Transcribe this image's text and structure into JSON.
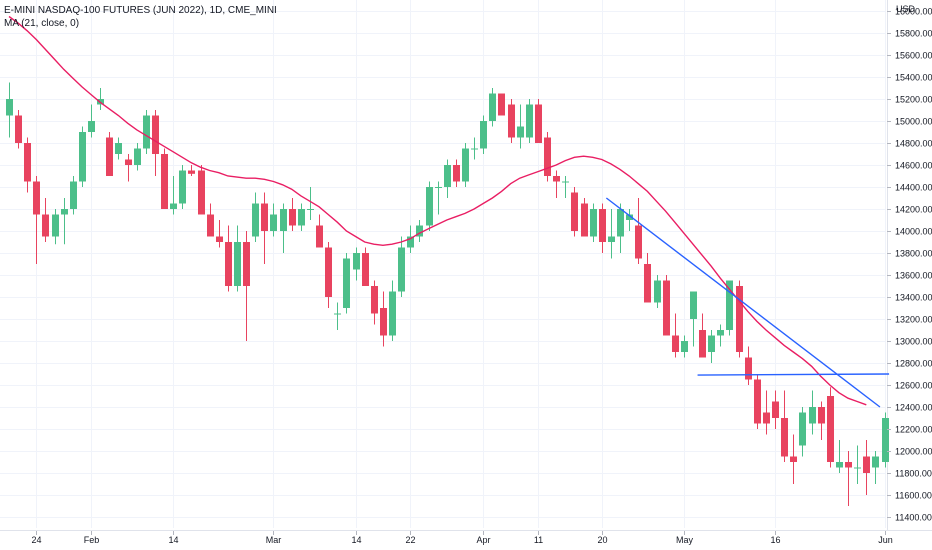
{
  "header": {
    "symbol_line": "E-MINI NASDAQ-100 FUTURES (JUN 2022), 1D, CME_MINI",
    "indicator_line": "MA (21, close, 0)",
    "currency": "USD"
  },
  "colors": {
    "up": "#26a69a",
    "up_body": "#4cbf8a",
    "down": "#ef5350",
    "down_body": "#e8435f",
    "ma": "#e91e63",
    "trendline": "#2962ff",
    "grid": "#f0f3fa",
    "axis_text": "#131722"
  },
  "chart_data": {
    "type": "candlestick",
    "title": "E-MINI NASDAQ-100 FUTURES (JUN 2022), 1D, CME_MINI",
    "ylabel": "USD",
    "ylim": [
      11300,
      16100
    ],
    "y_ticks": [
      "16000.00",
      "15800.00",
      "15600.00",
      "15400.00",
      "15200.00",
      "15000.00",
      "14800.00",
      "14600.00",
      "14400.00",
      "14200.00",
      "14000.00",
      "13800.00",
      "13600.00",
      "13400.00",
      "13200.00",
      "13000.00",
      "12800.00",
      "12600.00",
      "12400.00",
      "12200.00",
      "12000.00",
      "11800.00",
      "11600.00",
      "11400.00"
    ],
    "x_ticks": [
      {
        "label": "24",
        "index": 3
      },
      {
        "label": "Feb",
        "index": 9
      },
      {
        "label": "14",
        "index": 18
      },
      {
        "label": "Mar",
        "index": 29
      },
      {
        "label": "14",
        "index": 38
      },
      {
        "label": "22",
        "index": 44
      },
      {
        "label": "Apr",
        "index": 52
      },
      {
        "label": "11",
        "index": 58
      },
      {
        "label": "20",
        "index": 65
      },
      {
        "label": "May",
        "index": 74
      },
      {
        "label": "16",
        "index": 84
      },
      {
        "label": "Jun",
        "index": 96
      }
    ],
    "candles": [
      {
        "o": 15050,
        "h": 15350,
        "l": 14850,
        "c": 15200
      },
      {
        "o": 15050,
        "h": 15100,
        "l": 14750,
        "c": 14800
      },
      {
        "o": 14800,
        "h": 14850,
        "l": 14350,
        "c": 14450
      },
      {
        "o": 14450,
        "h": 14500,
        "l": 13700,
        "c": 14150
      },
      {
        "o": 14150,
        "h": 14300,
        "l": 13900,
        "c": 13950
      },
      {
        "o": 13950,
        "h": 14200,
        "l": 13880,
        "c": 14150
      },
      {
        "o": 14150,
        "h": 14300,
        "l": 13880,
        "c": 14200
      },
      {
        "o": 14200,
        "h": 14500,
        "l": 14150,
        "c": 14450
      },
      {
        "o": 14450,
        "h": 14950,
        "l": 14400,
        "c": 14900
      },
      {
        "o": 14900,
        "h": 15150,
        "l": 14850,
        "c": 15000
      },
      {
        "o": 15150,
        "h": 15300,
        "l": 15100,
        "c": 15200
      },
      {
        "o": 14850,
        "h": 14900,
        "l": 14500,
        "c": 14500
      },
      {
        "o": 14700,
        "h": 14850,
        "l": 14650,
        "c": 14800
      },
      {
        "o": 14650,
        "h": 14700,
        "l": 14450,
        "c": 14600
      },
      {
        "o": 14600,
        "h": 14800,
        "l": 14550,
        "c": 14750
      },
      {
        "o": 14750,
        "h": 15100,
        "l": 14700,
        "c": 15050
      },
      {
        "o": 15050,
        "h": 15100,
        "l": 14500,
        "c": 14700
      },
      {
        "o": 14700,
        "h": 14750,
        "l": 14200,
        "c": 14200
      },
      {
        "o": 14200,
        "h": 14500,
        "l": 14150,
        "c": 14250
      },
      {
        "o": 14250,
        "h": 14600,
        "l": 14200,
        "c": 14550
      },
      {
        "o": 14550,
        "h": 14600,
        "l": 14500,
        "c": 14520
      },
      {
        "o": 14550,
        "h": 14600,
        "l": 14150,
        "c": 14150
      },
      {
        "o": 14150,
        "h": 14250,
        "l": 13950,
        "c": 13950
      },
      {
        "o": 13950,
        "h": 14100,
        "l": 13850,
        "c": 13900
      },
      {
        "o": 13900,
        "h": 14050,
        "l": 13450,
        "c": 13500
      },
      {
        "o": 13500,
        "h": 14050,
        "l": 13450,
        "c": 13900
      },
      {
        "o": 13900,
        "h": 14000,
        "l": 13000,
        "c": 13500
      },
      {
        "o": 13950,
        "h": 14350,
        "l": 13900,
        "c": 14250
      },
      {
        "o": 14250,
        "h": 14350,
        "l": 13700,
        "c": 14000
      },
      {
        "o": 14000,
        "h": 14250,
        "l": 13950,
        "c": 14150
      },
      {
        "o": 14000,
        "h": 14250,
        "l": 13800,
        "c": 14200
      },
      {
        "o": 14200,
        "h": 14300,
        "l": 14000,
        "c": 14050
      },
      {
        "o": 14050,
        "h": 14250,
        "l": 14000,
        "c": 14200
      },
      {
        "o": 14200,
        "h": 14400,
        "l": 14100,
        "c": 14200
      },
      {
        "o": 14050,
        "h": 14150,
        "l": 13850,
        "c": 13850
      },
      {
        "o": 13850,
        "h": 13900,
        "l": 13300,
        "c": 13400
      },
      {
        "o": 13250,
        "h": 13350,
        "l": 13100,
        "c": 13250
      },
      {
        "o": 13300,
        "h": 13800,
        "l": 13250,
        "c": 13750
      },
      {
        "o": 13650,
        "h": 13850,
        "l": 13550,
        "c": 13800
      },
      {
        "o": 13800,
        "h": 13850,
        "l": 13500,
        "c": 13500
      },
      {
        "o": 13500,
        "h": 13550,
        "l": 13150,
        "c": 13250
      },
      {
        "o": 13300,
        "h": 13450,
        "l": 12950,
        "c": 13050
      },
      {
        "o": 13050,
        "h": 13550,
        "l": 13000,
        "c": 13450
      },
      {
        "o": 13450,
        "h": 13950,
        "l": 13400,
        "c": 13850
      },
      {
        "o": 13850,
        "h": 14050,
        "l": 13800,
        "c": 13950
      },
      {
        "o": 13950,
        "h": 14100,
        "l": 13900,
        "c": 14050
      },
      {
        "o": 14050,
        "h": 14450,
        "l": 14000,
        "c": 14400
      },
      {
        "o": 14400,
        "h": 14450,
        "l": 14150,
        "c": 14400
      },
      {
        "o": 14400,
        "h": 14650,
        "l": 14300,
        "c": 14600
      },
      {
        "o": 14600,
        "h": 14650,
        "l": 14400,
        "c": 14450
      },
      {
        "o": 14450,
        "h": 14800,
        "l": 14400,
        "c": 14750
      },
      {
        "o": 14750,
        "h": 14850,
        "l": 14650,
        "c": 14750
      },
      {
        "o": 14750,
        "h": 15050,
        "l": 14700,
        "c": 15000
      },
      {
        "o": 15000,
        "h": 15300,
        "l": 14950,
        "c": 15250
      },
      {
        "o": 15250,
        "h": 15250,
        "l": 15050,
        "c": 15050
      },
      {
        "o": 15150,
        "h": 15200,
        "l": 14800,
        "c": 14850
      },
      {
        "o": 14850,
        "h": 15150,
        "l": 14750,
        "c": 14950
      },
      {
        "o": 14850,
        "h": 15200,
        "l": 14800,
        "c": 15150
      },
      {
        "o": 15150,
        "h": 15200,
        "l": 14800,
        "c": 14800
      },
      {
        "o": 14850,
        "h": 14900,
        "l": 14450,
        "c": 14500
      },
      {
        "o": 14500,
        "h": 14550,
        "l": 14300,
        "c": 14450
      },
      {
        "o": 14450,
        "h": 14500,
        "l": 14300,
        "c": 14450
      },
      {
        "o": 14350,
        "h": 14400,
        "l": 13950,
        "c": 14000
      },
      {
        "o": 14250,
        "h": 14300,
        "l": 13950,
        "c": 13950
      },
      {
        "o": 13950,
        "h": 14250,
        "l": 13900,
        "c": 14200
      },
      {
        "o": 14200,
        "h": 14250,
        "l": 13800,
        "c": 13900
      },
      {
        "o": 13900,
        "h": 14200,
        "l": 13750,
        "c": 13950
      },
      {
        "o": 13950,
        "h": 14250,
        "l": 13800,
        "c": 14200
      },
      {
        "o": 14100,
        "h": 14200,
        "l": 14000,
        "c": 14150
      },
      {
        "o": 14050,
        "h": 14300,
        "l": 13700,
        "c": 13750
      },
      {
        "o": 13700,
        "h": 13800,
        "l": 13350,
        "c": 13350
      },
      {
        "o": 13350,
        "h": 13600,
        "l": 13300,
        "c": 13550
      },
      {
        "o": 13550,
        "h": 13600,
        "l": 13050,
        "c": 13050
      },
      {
        "o": 13050,
        "h": 13250,
        "l": 12850,
        "c": 12900
      },
      {
        "o": 12900,
        "h": 13050,
        "l": 12850,
        "c": 13000
      },
      {
        "o": 13200,
        "h": 13450,
        "l": 12950,
        "c": 13450
      },
      {
        "o": 13100,
        "h": 13250,
        "l": 12850,
        "c": 12850
      },
      {
        "o": 12900,
        "h": 13100,
        "l": 12800,
        "c": 13050
      },
      {
        "o": 13050,
        "h": 13150,
        "l": 12950,
        "c": 13100
      },
      {
        "o": 13100,
        "h": 13550,
        "l": 13050,
        "c": 13550
      },
      {
        "o": 13500,
        "h": 13550,
        "l": 12850,
        "c": 12900
      },
      {
        "o": 12850,
        "h": 12950,
        "l": 12600,
        "c": 12650
      },
      {
        "o": 12650,
        "h": 12700,
        "l": 12200,
        "c": 12250
      },
      {
        "o": 12350,
        "h": 12550,
        "l": 12150,
        "c": 12250
      },
      {
        "o": 12450,
        "h": 12550,
        "l": 12200,
        "c": 12300
      },
      {
        "o": 12300,
        "h": 12550,
        "l": 11900,
        "c": 11950
      },
      {
        "o": 11950,
        "h": 12150,
        "l": 11700,
        "c": 11900
      },
      {
        "o": 12050,
        "h": 12400,
        "l": 11950,
        "c": 12350
      },
      {
        "o": 12250,
        "h": 12550,
        "l": 12150,
        "c": 12400
      },
      {
        "o": 12400,
        "h": 12450,
        "l": 12100,
        "c": 12250
      },
      {
        "o": 12500,
        "h": 12580,
        "l": 11850,
        "c": 11900
      },
      {
        "o": 11850,
        "h": 12100,
        "l": 11800,
        "c": 11900
      },
      {
        "o": 11900,
        "h": 12000,
        "l": 11500,
        "c": 11850
      },
      {
        "o": 11850,
        "h": 12050,
        "l": 11700,
        "c": 11850
      },
      {
        "o": 11950,
        "h": 12100,
        "l": 11600,
        "c": 11800
      },
      {
        "o": 11850,
        "h": 12000,
        "l": 11700,
        "c": 11950
      },
      {
        "o": 11900,
        "h": 12350,
        "l": 11850,
        "c": 12300
      }
    ],
    "ma": [
      15950,
      15890,
      15820,
      15740,
      15650,
      15560,
      15470,
      15390,
      15310,
      15240,
      15170,
      15110,
      15050,
      14980,
      14920,
      14870,
      14820,
      14770,
      14720,
      14670,
      14620,
      14580,
      14550,
      14530,
      14500,
      14490,
      14480,
      14480,
      14470,
      14450,
      14420,
      14380,
      14320,
      14270,
      14220,
      14150,
      14080,
      14000,
      13950,
      13900,
      13880,
      13870,
      13880,
      13900,
      13930,
      13980,
      14020,
      14060,
      14100,
      14130,
      14160,
      14200,
      14250,
      14300,
      14360,
      14430,
      14480,
      14510,
      14540,
      14570,
      14600,
      14640,
      14670,
      14680,
      14670,
      14650,
      14610,
      14560,
      14500,
      14430,
      14360,
      14270,
      14180,
      14080,
      13980,
      13880,
      13780,
      13680,
      13570,
      13470,
      13370,
      13270,
      13180,
      13100,
      13030,
      12960,
      12900,
      12840,
      12770,
      12680,
      12600,
      12530,
      12480,
      12450,
      12420
    ],
    "trendlines": [
      {
        "x1": 65.5,
        "y1": 14300,
        "x2": 95.5,
        "y2": 12400
      },
      {
        "x1": 75.5,
        "y1": 12690,
        "x2": 96.5,
        "y2": 12700
      }
    ]
  }
}
